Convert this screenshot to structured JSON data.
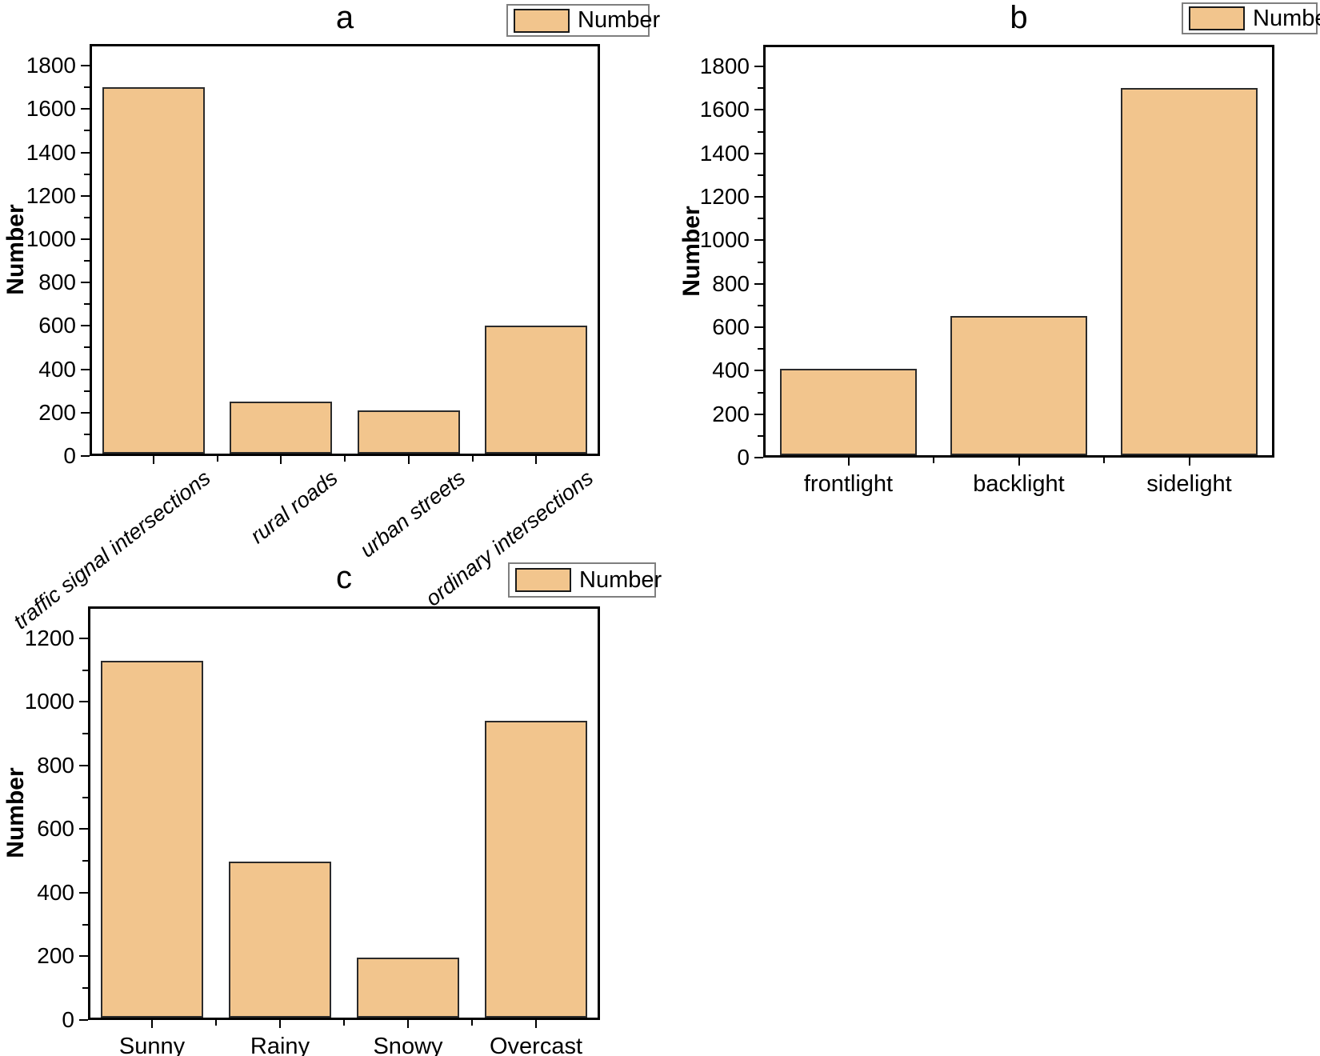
{
  "figure": {
    "background": "#ffffff",
    "text_color": "#000000"
  },
  "chart_data": [
    {
      "id": "a",
      "type": "bar",
      "title": "a",
      "ylabel": "Number",
      "legend_label": "Number",
      "legend_position": "top-right",
      "categories": [
        "traffic signal intersections",
        "rural roads",
        "urban streets",
        "ordinary intersections"
      ],
      "values": [
        1700,
        250,
        210,
        600
      ],
      "ylim": [
        0,
        1900
      ],
      "ytick_step": 200,
      "ytick_max": 1800,
      "minor_y_ticks": true,
      "grid": false,
      "bar_fill": "#F2C58D",
      "bar_edge": "#2b2b2b",
      "xtick_rotation_deg": -38,
      "xtick_italic": true
    },
    {
      "id": "b",
      "type": "bar",
      "title": "b",
      "ylabel": "Number",
      "legend_label": "Number",
      "legend_position": "top-right",
      "categories": [
        "frontlight",
        "backlight",
        "sidelight"
      ],
      "values": [
        410,
        650,
        1700
      ],
      "ylim": [
        0,
        1900
      ],
      "ytick_step": 200,
      "ytick_max": 1800,
      "minor_y_ticks": true,
      "grid": false,
      "bar_fill": "#F2C58D",
      "bar_edge": "#2b2b2b",
      "xtick_rotation_deg": 0,
      "xtick_italic": false
    },
    {
      "id": "c",
      "type": "bar",
      "title": "c",
      "ylabel": "Number",
      "legend_label": "Number",
      "legend_position": "top-right",
      "categories": [
        "Sunny",
        "Rainy",
        "Snowy",
        "Overcast"
      ],
      "values": [
        1130,
        497,
        195,
        940
      ],
      "ylim": [
        0,
        1300
      ],
      "ytick_step": 200,
      "ytick_max": 1200,
      "minor_y_ticks": true,
      "grid": false,
      "bar_fill": "#F2C58D",
      "bar_edge": "#2b2b2b",
      "xtick_rotation_deg": 0,
      "xtick_italic": false
    }
  ]
}
